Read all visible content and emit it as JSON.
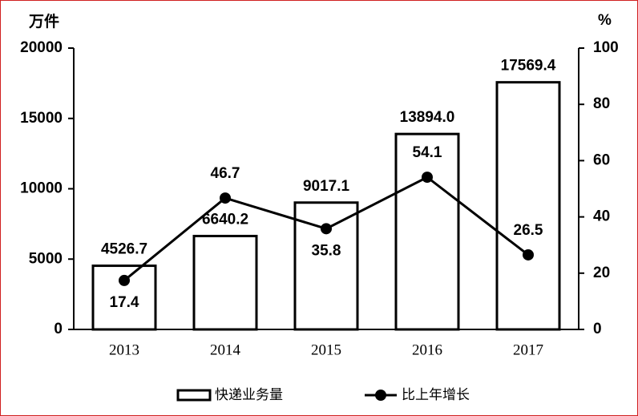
{
  "chart_data": {
    "type": "bar",
    "y_label": "万件",
    "y2_label": "%",
    "categories": [
      "2013",
      "2014",
      "2015",
      "2016",
      "2017"
    ],
    "series": [
      {
        "name": "快递业务量",
        "type": "bar",
        "color": "#ffffff",
        "values": [
          4526.7,
          6640.2,
          9017.1,
          13894.0,
          17569.4
        ],
        "value_labels": [
          "4526.7",
          "6640.2",
          "9017.1",
          "13894.0",
          "17569.4"
        ]
      },
      {
        "name": "比上年增长",
        "type": "line",
        "axis": "y2",
        "color": "#000000",
        "values": [
          17.4,
          46.7,
          35.8,
          54.1,
          26.5
        ]
      }
    ],
    "ylim": [
      0,
      20000
    ],
    "yticks": [
      0,
      5000,
      10000,
      15000,
      20000
    ],
    "y2lim": [
      0,
      100
    ],
    "y2ticks": [
      0,
      20,
      40,
      60,
      80,
      100
    ],
    "grid": false,
    "legend": "bottom"
  }
}
